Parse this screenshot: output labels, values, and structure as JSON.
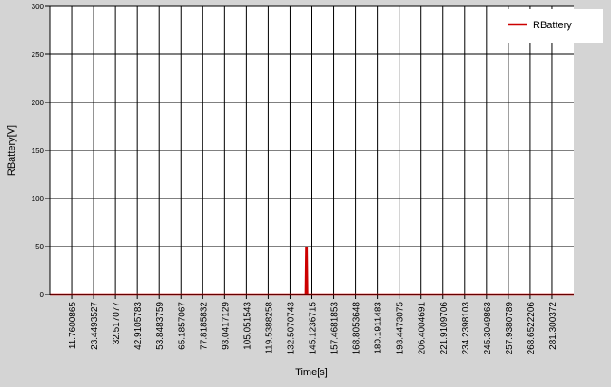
{
  "chart_data": {
    "type": "line",
    "xlabel": "Time[s]",
    "ylabel": "RBattery[V]",
    "ylim": [
      0,
      300
    ],
    "yticks": [
      0,
      50,
      100,
      150,
      200,
      250,
      300
    ],
    "ytick_labels": [
      "0",
      "50",
      "100",
      "150",
      "200",
      "250",
      "300"
    ],
    "xtick_labels": [
      "11.7600865",
      "23.4493527",
      "32.517077",
      "42.9105783",
      "53.8483759",
      "65.1857067",
      "77.8185832",
      "93.0417129",
      "105.051543",
      "119.5388258",
      "132.5070743",
      "145.1236715",
      "157.4681853",
      "168.8053648",
      "180.1911483",
      "193.4473075",
      "206.4004691",
      "221.9109706",
      "234.2398103",
      "245.3049863",
      "257.9380789",
      "268.6522206",
      "281.300372"
    ],
    "grid": true,
    "legend_position": "top-right",
    "series": [
      {
        "name": "RBattery",
        "color": "#cc0000",
        "x": [
          0,
          144.6,
          144.9,
          145.1,
          145.4,
          296
        ],
        "y": [
          0,
          0,
          48,
          48,
          0,
          0
        ]
      }
    ]
  }
}
